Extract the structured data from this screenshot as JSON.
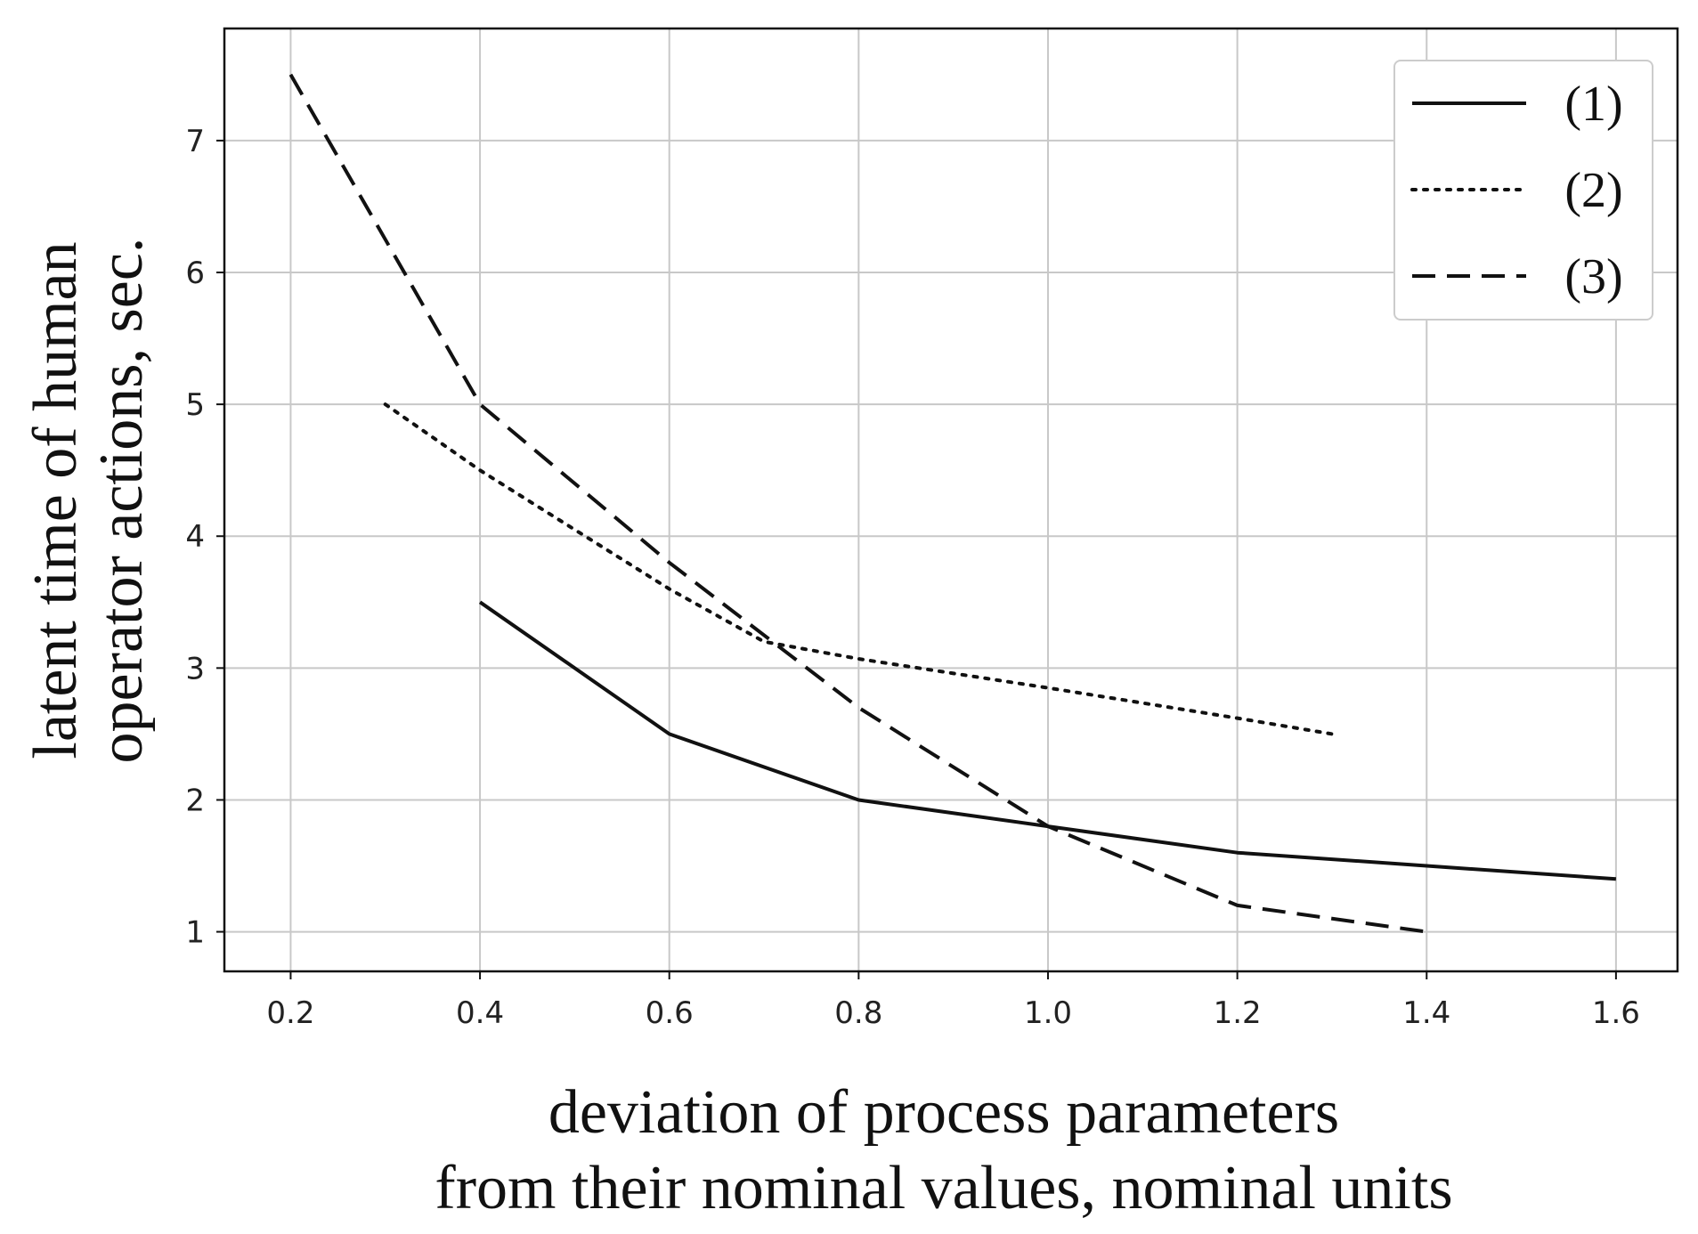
{
  "chart_data": {
    "type": "line",
    "xlabel_lines": [
      "deviation of process parameters",
      "from their nominal values, nominal units"
    ],
    "ylabel_lines": [
      "latent time of human",
      "operator actions, sec."
    ],
    "xlim": [
      0.13,
      1.665
    ],
    "ylim": [
      0.7,
      7.85
    ],
    "x_ticks": [
      0.2,
      0.4,
      0.6,
      0.8,
      1.0,
      1.2,
      1.4,
      1.6
    ],
    "x_tick_labels": [
      "0.2",
      "0.4",
      "0.6",
      "0.8",
      "1.0",
      "1.2",
      "1.4",
      "1.6"
    ],
    "y_ticks": [
      1,
      2,
      3,
      4,
      5,
      6,
      7
    ],
    "y_tick_labels": [
      "1",
      "2",
      "3",
      "4",
      "5",
      "6",
      "7"
    ],
    "grid": true,
    "legend_position": "top-right",
    "series": [
      {
        "name": "(1)",
        "style": "solid",
        "color": "#111111",
        "x": [
          0.4,
          0.6,
          0.8,
          1.0,
          1.2,
          1.4,
          1.6
        ],
        "y": [
          3.5,
          2.5,
          2.0,
          1.8,
          1.6,
          1.5,
          1.4
        ]
      },
      {
        "name": "(2)",
        "style": "dotted",
        "color": "#111111",
        "x": [
          0.3,
          0.4,
          0.6,
          0.7,
          0.8,
          1.0,
          1.2,
          1.3
        ],
        "y": [
          5.0,
          4.5,
          3.6,
          3.2,
          3.07,
          2.85,
          2.62,
          2.5
        ]
      },
      {
        "name": "(3)",
        "style": "dashed",
        "color": "#111111",
        "x": [
          0.2,
          0.4,
          0.6,
          0.8,
          1.0,
          1.2,
          1.4
        ],
        "y": [
          7.5,
          5.0,
          3.8,
          2.7,
          1.8,
          1.2,
          1.0
        ]
      }
    ]
  },
  "colors": {
    "grid": "#c8c8c8",
    "axes": "#111111",
    "background": "#ffffff"
  }
}
